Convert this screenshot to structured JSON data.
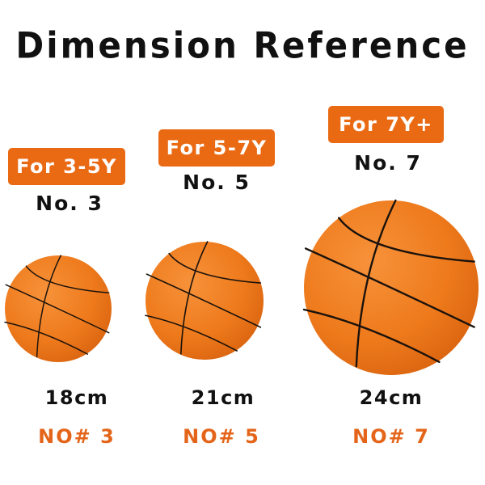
{
  "title": "Dimension Reference",
  "colors": {
    "accent": "#ea6a14",
    "ball": "#f07a1c",
    "text": "#111111"
  },
  "balls": [
    {
      "badge": "For 3-5Y",
      "number": "No. 3",
      "size": "18cm",
      "code": "NO# 3"
    },
    {
      "badge": "For 5-7Y",
      "number": "No. 5",
      "size": "21cm",
      "code": "NO# 5"
    },
    {
      "badge": "For 7Y+",
      "number": "No. 7",
      "size": "24cm",
      "code": "NO# 7"
    }
  ]
}
